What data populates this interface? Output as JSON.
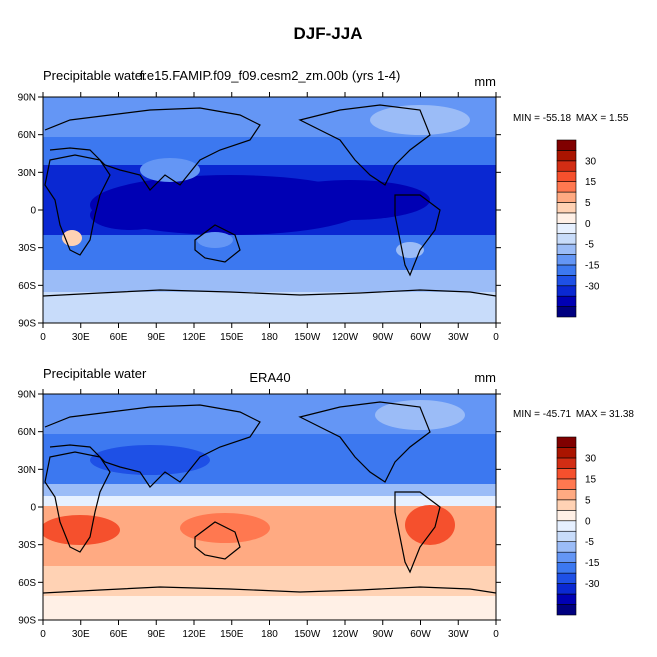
{
  "title": "DJF-JJA",
  "min_label": "MIN =",
  "max_label": "MAX =",
  "panels": [
    {
      "left_label": "Precipitable water",
      "center_label": "f.e15.FAMIP.f09_f09.cesm2_zm.00b (yrs 1-4)",
      "units": "mm",
      "min": "-55.18",
      "max": "1.55"
    },
    {
      "left_label": "Precipitable water",
      "center_label": "ERA40",
      "units": "mm",
      "min": "-45.71",
      "max": "31.38"
    }
  ],
  "lat_ticks": [
    "90N",
    "60N",
    "30N",
    "0",
    "30S",
    "60S",
    "90S"
  ],
  "lon_ticks": [
    "0",
    "30E",
    "60E",
    "90E",
    "120E",
    "150E",
    "180",
    "150W",
    "120W",
    "90W",
    "60W",
    "30W",
    "0"
  ],
  "colorbar": {
    "tick_labels": [
      "30",
      "15",
      "5",
      "0",
      "-5",
      "-15",
      "-30"
    ],
    "colors": [
      "#000080",
      "#0000b4",
      "#0a28d2",
      "#1e50e6",
      "#3c78f0",
      "#6496f5",
      "#9bbcf7",
      "#c8dcfa",
      "#e6f0ff",
      "#fff0e6",
      "#ffd2b4",
      "#ffaa82",
      "#ff7850",
      "#f5502d",
      "#d22d14",
      "#aa1400",
      "#800000"
    ]
  }
}
